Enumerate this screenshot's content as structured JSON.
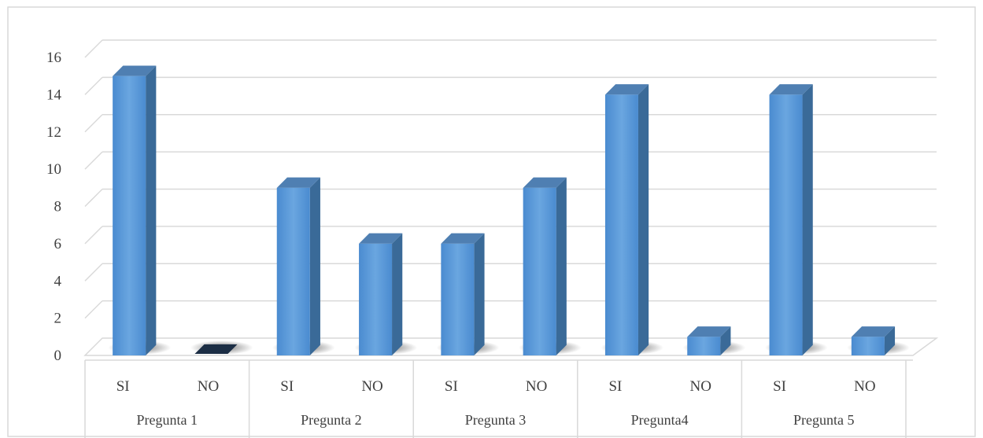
{
  "chart_data": {
    "type": "bar",
    "style": "3d-column",
    "groups": [
      "Pregunta 1",
      "Pregunta 2",
      "Pregunta 3",
      "Pregunta4",
      "Pregunta 5"
    ],
    "categories": [
      "SI",
      "NO",
      "SI",
      "NO",
      "SI",
      "NO",
      "SI",
      "NO",
      "SI",
      "NO"
    ],
    "values": [
      15,
      0,
      9,
      6,
      6,
      9,
      14,
      1,
      14,
      1
    ],
    "ylim": [
      0,
      16
    ],
    "yticks": [
      "0",
      "2",
      "4",
      "6",
      "8",
      "10",
      "12",
      "14",
      "16"
    ],
    "title": "",
    "xlabel": "",
    "ylabel": "",
    "grid": true,
    "legend": "none",
    "colors": {
      "bar_front": "#5b9bd5",
      "bar_side": "#3a6a98",
      "bar_top": "#4f7fb2",
      "zero_bar": "#1c2e45",
      "grid": "#d9d9d9",
      "text": "#404040"
    }
  }
}
